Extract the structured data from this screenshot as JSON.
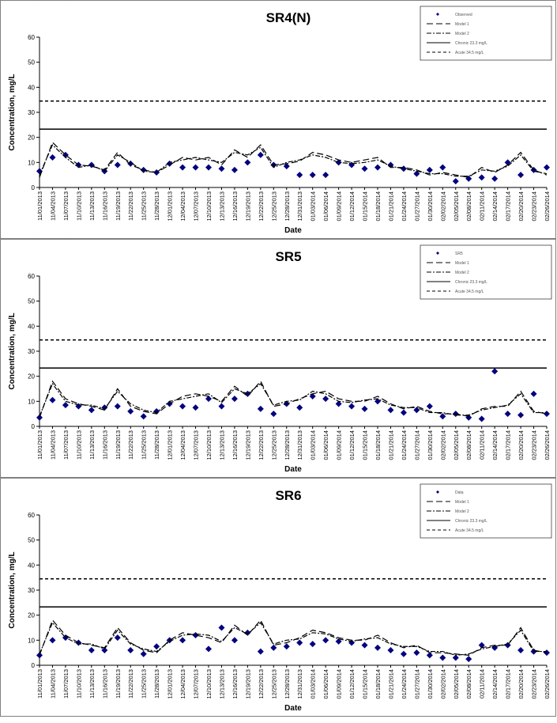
{
  "chart_data": [
    {
      "type": "line",
      "title": "SR4(N)",
      "xlabel": "Date",
      "ylabel": "Concentration, mg/L",
      "categories": [
        "11/01/2013",
        "11/04/2013",
        "11/07/2013",
        "11/10/2013",
        "11/13/2013",
        "11/16/2013",
        "11/19/2013",
        "11/22/2013",
        "11/25/2013",
        "11/28/2013",
        "12/01/2013",
        "12/04/2013",
        "12/07/2013",
        "12/10/2013",
        "12/13/2013",
        "12/16/2013",
        "12/19/2013",
        "12/22/2013",
        "12/25/2013",
        "12/28/2013",
        "12/31/2013",
        "01/03/2014",
        "01/06/2014",
        "01/09/2014",
        "01/12/2014",
        "01/15/2014",
        "01/18/2014",
        "01/21/2014",
        "01/24/2014",
        "01/27/2014",
        "01/30/2014",
        "02/02/2014",
        "02/05/2014",
        "02/08/2014",
        "02/11/2014",
        "02/14/2014",
        "02/17/2014",
        "02/20/2014",
        "02/23/2014",
        "02/26/2014"
      ],
      "ylim": [
        0,
        60
      ],
      "yticks": [
        0,
        10,
        20,
        30,
        40,
        50,
        60
      ],
      "legend": "upper right",
      "series": [
        {
          "name": "Observed",
          "color": "#000080",
          "style": "marker",
          "values": [
            6.5,
            12,
            13,
            9,
            9,
            6.5,
            9,
            9.5,
            7,
            6,
            9.5,
            8,
            8,
            8,
            7.5,
            7,
            10,
            13,
            9,
            8.5,
            5,
            5,
            5,
            10,
            9,
            7.5,
            8,
            9,
            7.5,
            5.5,
            7,
            8,
            2.5,
            3.5,
            4,
            3.5,
            10,
            5,
            7,
            8
          ]
        },
        {
          "name": "Model 1",
          "color": "#000000",
          "style": "line",
          "dash": "8,4",
          "values": [
            4,
            18,
            13,
            9,
            8.5,
            7,
            14,
            9,
            7,
            6,
            9,
            12,
            11,
            12,
            9,
            15,
            12,
            17,
            9,
            9.5,
            10.5,
            14,
            13,
            11,
            10,
            11,
            12,
            8,
            8,
            7,
            5,
            6,
            5,
            4,
            8,
            6,
            9,
            14,
            7,
            5
          ]
        },
        {
          "name": "Model 2",
          "color": "#000000",
          "style": "line",
          "dash": "6,2,2,2",
          "values": [
            5,
            17,
            12,
            8,
            9,
            6.5,
            13,
            10,
            6.5,
            6,
            10,
            11,
            12,
            11,
            10,
            14,
            13,
            16,
            8,
            10,
            11,
            13,
            12,
            10,
            9.5,
            10,
            11,
            8.5,
            7.5,
            6.5,
            5.5,
            5.5,
            4.5,
            4.5,
            7,
            6.5,
            8.5,
            13,
            6.5,
            5.5
          ]
        }
      ],
      "hlines": [
        {
          "name": "Chronic 23.3 mg/L",
          "value": 23.3,
          "dash": ""
        },
        {
          "name": "Acute 34.5 mg/L",
          "value": 34.5,
          "dash": "4,3"
        }
      ]
    },
    {
      "type": "line",
      "title": "SR5",
      "xlabel": "Date",
      "ylabel": "Concentration, mg/L",
      "categories": [
        "11/01/2013",
        "11/04/2013",
        "11/07/2013",
        "11/10/2013",
        "11/13/2013",
        "11/16/2013",
        "11/19/2013",
        "11/22/2013",
        "11/25/2013",
        "11/28/2013",
        "12/01/2013",
        "12/04/2013",
        "12/07/2013",
        "12/10/2013",
        "12/13/2013",
        "12/16/2013",
        "12/19/2013",
        "12/22/2013",
        "12/25/2013",
        "12/28/2013",
        "12/31/2013",
        "01/03/2014",
        "01/06/2014",
        "01/09/2014",
        "01/12/2014",
        "01/15/2014",
        "01/18/2014",
        "01/21/2014",
        "01/24/2014",
        "01/27/2014",
        "01/30/2014",
        "02/02/2014",
        "02/05/2014",
        "02/08/2014",
        "02/11/2014",
        "02/14/2014",
        "02/17/2014",
        "02/20/2014",
        "02/23/2014",
        "02/26/2014"
      ],
      "ylim": [
        0,
        60
      ],
      "yticks": [
        0,
        10,
        20,
        30,
        40,
        50,
        60
      ],
      "legend": "upper right",
      "series": [
        {
          "name": "SR5",
          "color": "#000080",
          "style": "marker",
          "values": [
            3.5,
            10.5,
            8.5,
            8,
            6.5,
            7.5,
            8,
            6,
            4,
            6,
            9,
            8,
            7.5,
            11,
            8,
            11,
            13,
            7,
            5,
            9,
            7.5,
            12,
            11,
            9,
            8,
            7,
            10,
            6.5,
            5.5,
            6.5,
            8,
            4,
            5,
            3.5,
            3,
            22,
            5,
            4.5,
            13,
            5
          ]
        },
        {
          "name": "Model 1",
          "color": "#000000",
          "style": "line",
          "dash": "8,4",
          "values": [
            3.5,
            18,
            11,
            9,
            8,
            6.5,
            15,
            8,
            6,
            5,
            9,
            12,
            13,
            12,
            10,
            16,
            12,
            18,
            8,
            9,
            11,
            13,
            14,
            11,
            10,
            10,
            12,
            9,
            7,
            8,
            6,
            5,
            5,
            4,
            7,
            8,
            8,
            14,
            6,
            5
          ]
        },
        {
          "name": "Model 2",
          "color": "#000000",
          "style": "line",
          "dash": "6,2,2,2",
          "values": [
            4,
            17,
            10,
            8.5,
            8.5,
            7,
            14,
            9,
            6.5,
            5.5,
            10,
            11,
            12,
            13,
            9.5,
            15,
            13,
            17,
            8.5,
            10,
            10.5,
            14,
            13,
            10,
            9.5,
            10.5,
            11,
            8.5,
            7.5,
            7.5,
            5.5,
            5.5,
            4.5,
            4.5,
            6.5,
            7.5,
            8.5,
            13,
            5.5,
            5.5
          ]
        }
      ],
      "hlines": [
        {
          "name": "Chronic 23.3 mg/L",
          "value": 23.3,
          "dash": ""
        },
        {
          "name": "Acute 34.5 mg/L",
          "value": 34.5,
          "dash": "4,3"
        }
      ]
    },
    {
      "type": "line",
      "title": "SR6",
      "xlabel": "Date",
      "ylabel": "Concentration, mg/L",
      "categories": [
        "11/01/2013",
        "11/04/2013",
        "11/07/2013",
        "11/10/2013",
        "11/13/2013",
        "11/16/2013",
        "11/19/2013",
        "11/22/2013",
        "11/25/2013",
        "11/28/2013",
        "12/01/2013",
        "12/04/2013",
        "12/07/2013",
        "12/10/2013",
        "12/13/2013",
        "12/16/2013",
        "12/19/2013",
        "12/22/2013",
        "12/25/2013",
        "12/28/2013",
        "12/31/2013",
        "01/03/2014",
        "01/06/2014",
        "01/09/2014",
        "01/12/2014",
        "01/15/2014",
        "01/18/2014",
        "01/21/2014",
        "01/24/2014",
        "01/27/2014",
        "01/30/2014",
        "02/02/2014",
        "02/05/2014",
        "02/08/2014",
        "02/11/2014",
        "02/14/2014",
        "02/17/2014",
        "02/20/2014",
        "02/23/2014",
        "02/26/2014"
      ],
      "ylim": [
        0,
        60
      ],
      "yticks": [
        0,
        10,
        20,
        30,
        40,
        50,
        60
      ],
      "legend": "upper right",
      "series": [
        {
          "name": "Data",
          "color": "#000080",
          "style": "marker",
          "values": [
            4,
            10,
            11,
            9,
            6,
            6,
            11,
            6,
            4.5,
            7.5,
            10,
            10,
            12,
            6.5,
            15,
            10,
            13,
            5.5,
            7,
            7.5,
            9,
            8.5,
            10,
            9.5,
            9,
            8,
            7,
            6,
            4.5,
            5,
            4,
            3,
            3,
            2.5,
            8,
            7,
            8,
            6,
            5.5,
            5
          ]
        },
        {
          "name": "Model 1",
          "color": "#000000",
          "style": "line",
          "dash": "8,4",
          "values": [
            4,
            18,
            12,
            9,
            8,
            7,
            15,
            9,
            6,
            5,
            10,
            13,
            12,
            11,
            9,
            16,
            12,
            18,
            8,
            9,
            11,
            14,
            13,
            11,
            10,
            10,
            12,
            9,
            7,
            8,
            5,
            5,
            4.5,
            4,
            7,
            8,
            8,
            15,
            6,
            5
          ]
        },
        {
          "name": "Model 2",
          "color": "#000000",
          "style": "line",
          "dash": "6,2,2,2",
          "values": [
            4.5,
            17,
            11,
            8.5,
            8.5,
            6.5,
            14,
            8.5,
            6.5,
            5.5,
            9.5,
            12,
            12.5,
            12,
            9.5,
            15,
            12.5,
            17,
            8.5,
            10,
            10.5,
            13,
            12.5,
            10.5,
            9.5,
            10.5,
            11,
            8.5,
            7.5,
            7.5,
            5.5,
            5.5,
            4,
            4.5,
            6.5,
            7.5,
            8.5,
            14,
            5.5,
            5.5
          ]
        }
      ],
      "hlines": [
        {
          "name": "Chronic 23.3 mg/L",
          "value": 23.3,
          "dash": ""
        },
        {
          "name": "Acute 34.5 mg/L",
          "value": 34.5,
          "dash": "4,3"
        }
      ]
    }
  ]
}
